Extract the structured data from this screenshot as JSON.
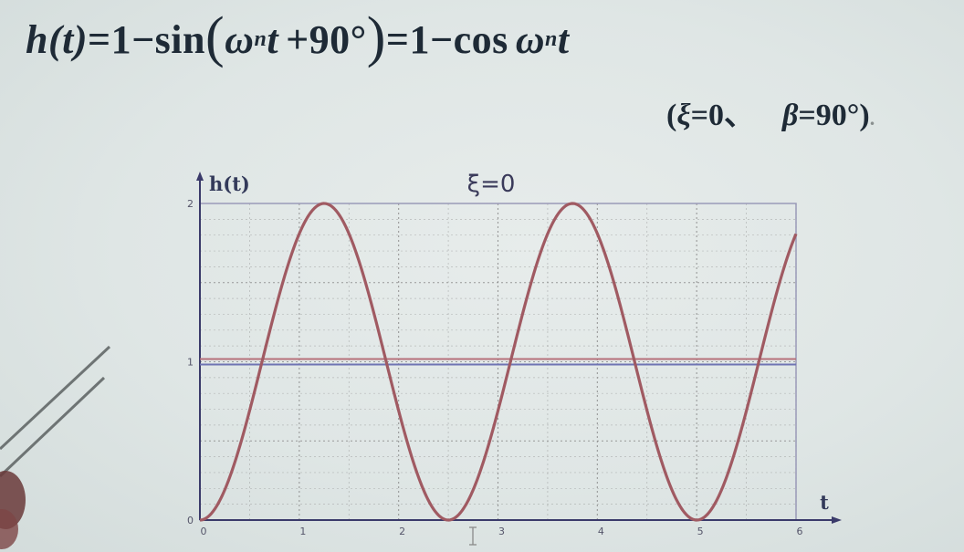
{
  "formula": {
    "lhs": "h(t)",
    "eq1": "=",
    "one_a": "1",
    "minus_a": "−",
    "sin": "sin",
    "paren_open": "(",
    "omega_a": "ω",
    "sub_a": "n",
    "t_a": "t",
    "plus": "+",
    "deg90": "90°",
    "paren_close": ")",
    "eq2": "=",
    "one_b": "1",
    "minus_b": "−",
    "cos": "cos",
    "omega_b": "ω",
    "sub_b": "n",
    "t_b": "t"
  },
  "condition": {
    "open": "(",
    "xi": "ξ",
    "xi_eq": "=",
    "xi_val": "0",
    "sep": "、",
    "beta": "β",
    "beta_eq": "=",
    "beta_val": "90°",
    "close": ")",
    "trail": "."
  },
  "colors": {
    "response": "#a05a62",
    "unity_red": "#b6707a",
    "unity_blue": "#6f74b3",
    "grid": "#8c8c8c",
    "frame": "#9a9ab8",
    "axis": "#3a3a6a"
  },
  "chart_data": {
    "type": "line",
    "title": "ξ=0",
    "ylabel": "h(t)",
    "xlabel": "t",
    "xlim": [
      0,
      6
    ],
    "ylim": [
      0,
      2
    ],
    "x_ticks": [
      "0",
      "1",
      "2",
      "3",
      "4",
      "5",
      "6"
    ],
    "y_ticks": [
      "0",
      "1",
      "2"
    ],
    "grid": true,
    "omega_n": 2.513,
    "series": [
      {
        "x": [
          0,
          0.25,
          0.5,
          0.75,
          1.0,
          1.25,
          1.5,
          1.75,
          2.0,
          2.25,
          2.5,
          2.75,
          3.0,
          3.25,
          3.5,
          3.75,
          4.0,
          4.25,
          4.5,
          4.75,
          5.0,
          5.25,
          5.5,
          5.75,
          6.0
        ],
        "values": [
          0,
          0.19,
          0.69,
          1.31,
          1.81,
          2.0,
          1.81,
          1.31,
          0.69,
          0.19,
          0,
          0.19,
          0.69,
          1.31,
          1.81,
          2.0,
          1.81,
          1.31,
          0.69,
          0.19,
          0,
          0.19,
          0.69,
          1.31,
          1.81
        ]
      }
    ],
    "reference_line": 1
  }
}
